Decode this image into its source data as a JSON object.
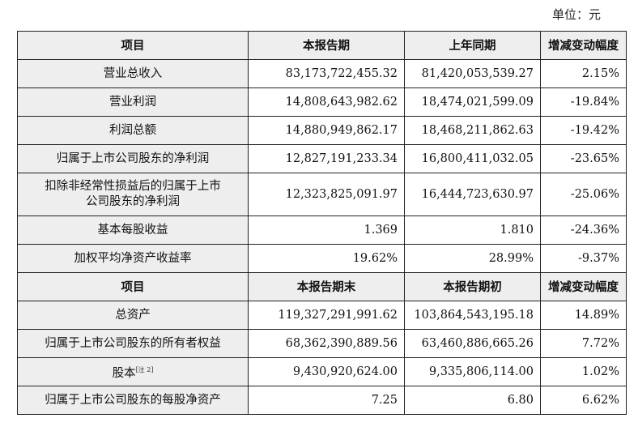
{
  "unit_label": "单位：元",
  "section1": {
    "headers": [
      "项目",
      "本报告期",
      "上年同期",
      "增减变动幅度"
    ],
    "rows": [
      {
        "item": "营业总收入",
        "current": "83,173,722,455.32",
        "prior": "81,420,053,539.27",
        "change": "2.15%"
      },
      {
        "item": "营业利润",
        "current": "14,808,643,982.62",
        "prior": "18,474,021,599.09",
        "change": "-19.84%"
      },
      {
        "item": "利润总额",
        "current": "14,880,949,862.17",
        "prior": "18,468,211,862.63",
        "change": "-19.42%"
      },
      {
        "item": "归属于上市公司股东的净利润",
        "current": "12,827,191,233.34",
        "prior": "16,800,411,032.05",
        "change": "-23.65%"
      },
      {
        "item_line1": "扣除非经常性损益后的归属于上市",
        "item_line2": "公司股东的净利润",
        "current": "12,323,825,091.97",
        "prior": "16,444,723,630.97",
        "change": "-25.06%"
      },
      {
        "item": "基本每股收益",
        "current": "1.369",
        "prior": "1.810",
        "change": "-24.36%"
      },
      {
        "item": "加权平均净资产收益率",
        "current": "19.62%",
        "prior": "28.99%",
        "change": "-9.37%"
      }
    ]
  },
  "section2": {
    "headers": [
      "项目",
      "本报告期末",
      "本报告期初",
      "增减变动幅度"
    ],
    "rows": [
      {
        "item": "总资产",
        "current": "119,327,291,991.62",
        "prior": "103,864,543,195.18",
        "change": "14.89%"
      },
      {
        "item": "归属于上市公司股东的所有者权益",
        "current": "68,362,390,889.56",
        "prior": "63,460,886,665.26",
        "change": "7.72%"
      },
      {
        "item": "股本",
        "note": "[注 2]",
        "current": "9,430,920,624.00",
        "prior": "9,335,806,114.00",
        "change": "1.02%"
      },
      {
        "item": "归属于上市公司股东的每股净资产",
        "current": "7.25",
        "prior": "6.80",
        "change": "6.62%"
      }
    ]
  }
}
